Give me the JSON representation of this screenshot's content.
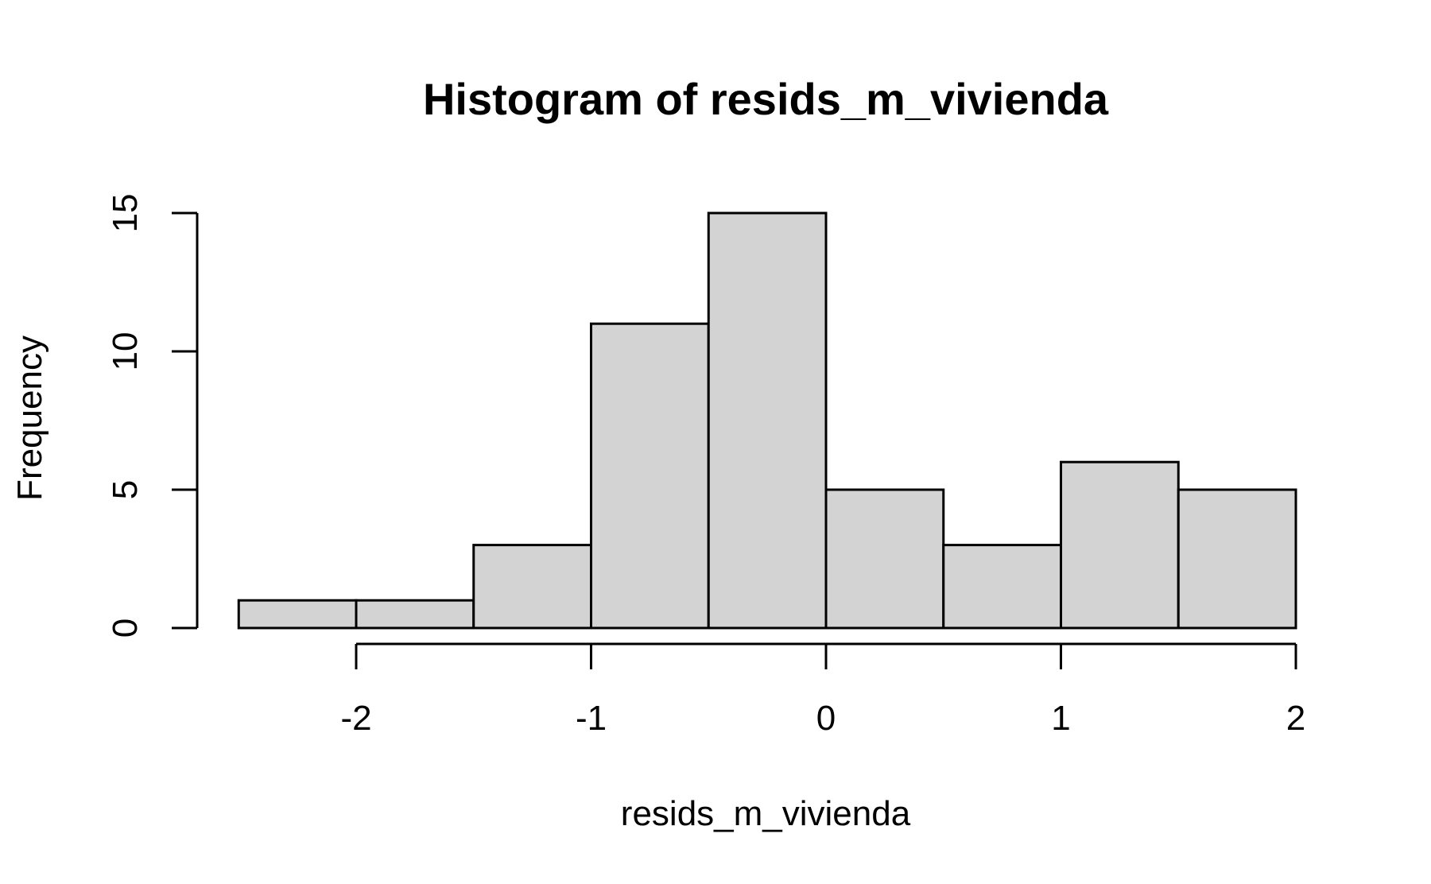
{
  "chart_data": {
    "type": "bar",
    "subtype": "histogram",
    "title": "Histogram of resids_m_vivienda",
    "xlabel": "resids_m_vivienda",
    "ylabel": "Frequency",
    "bin_edges": [
      -2.5,
      -2.0,
      -1.5,
      -1.0,
      -0.5,
      0.0,
      0.5,
      1.0,
      1.5,
      2.0
    ],
    "counts": [
      1,
      1,
      3,
      11,
      15,
      5,
      3,
      6,
      5
    ],
    "xlim": [
      -2.5,
      2.0
    ],
    "ylim": [
      0,
      15
    ],
    "x_ticks": [
      -2,
      -1,
      0,
      1,
      2
    ],
    "x_tick_labels": [
      "-2",
      "-1",
      "0",
      "1",
      "2"
    ],
    "y_ticks": [
      0,
      5,
      10,
      15
    ],
    "y_tick_labels": [
      "0",
      "5",
      "10",
      "15"
    ],
    "bar_color": "#d3d3d3",
    "bar_border_color": "#000000",
    "grid": false,
    "legend": "none"
  }
}
